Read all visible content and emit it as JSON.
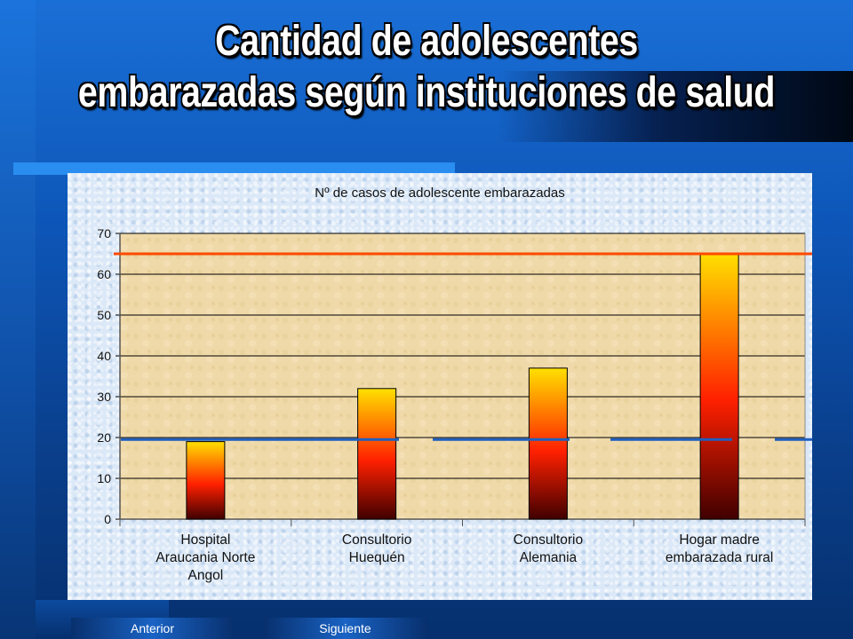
{
  "slide": {
    "title_line1": "Cantidad de adolescentes",
    "title_line2": "embarazadas según instituciones de salud"
  },
  "navigation": {
    "previous_label": "Anterior",
    "next_label": "Siguiente"
  },
  "colors": {
    "bar_top": "#ffe000",
    "bar_mid": "#ff2000",
    "bar_bottom": "#400000",
    "reference_line_upper": "#ff4a00",
    "reference_line_lower": "#1f5fc0",
    "plot_area": "#efd9a8",
    "grid": "#000000"
  },
  "chart_data": {
    "type": "bar",
    "title": "Nº de casos de adolescente embarazadas",
    "xlabel": "",
    "ylabel": "",
    "categories": [
      [
        "Hospital",
        "Araucania Norte",
        "Angol"
      ],
      [
        "Consultorio",
        "Huequén"
      ],
      [
        "Consultorio",
        "Alemania"
      ],
      [
        "Hogar madre",
        "embarazada rural"
      ]
    ],
    "values": [
      19,
      32,
      37,
      65
    ],
    "ylim": [
      0,
      70
    ],
    "yticks": [
      0,
      10,
      20,
      30,
      40,
      50,
      60,
      70
    ],
    "grid": true,
    "legend": "none",
    "reference_lines": [
      {
        "value": 65,
        "color": "#ff4a00"
      },
      {
        "value": 19.5,
        "color": "#1f5fc0"
      }
    ]
  }
}
